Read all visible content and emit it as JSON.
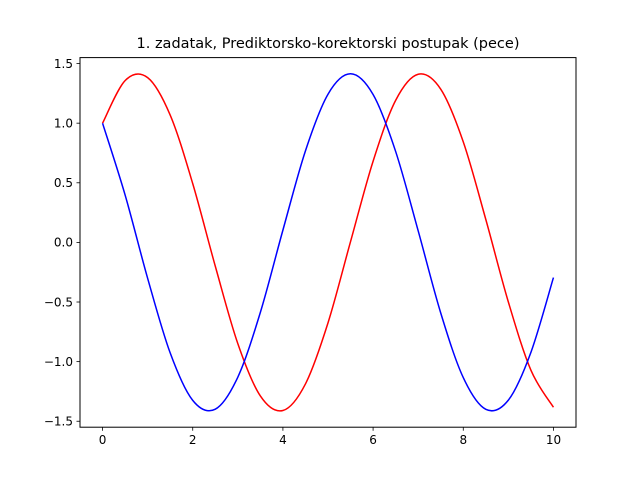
{
  "chart_data": {
    "type": "line",
    "title": "1. zadatak, Prediktorsko-korektorski postupak (pece)",
    "xlabel": "",
    "ylabel": "",
    "xlim": [
      -0.5,
      10.5
    ],
    "ylim": [
      -1.55,
      1.55
    ],
    "grid": false,
    "x_ticks": [
      0,
      2,
      4,
      6,
      8,
      10
    ],
    "x_tick_labels": [
      "0",
      "2",
      "4",
      "6",
      "8",
      "10"
    ],
    "y_ticks": [
      -1.5,
      -1.0,
      -0.5,
      0.0,
      0.5,
      1.0,
      1.5
    ],
    "y_tick_labels": [
      "−1.5",
      "−1.0",
      "−0.5",
      "0.0",
      "0.5",
      "1.0",
      "1.5"
    ],
    "x": [
      0,
      0.5,
      1,
      1.5,
      2,
      2.5,
      3,
      3.5,
      4,
      4.5,
      5,
      5.5,
      6,
      6.5,
      7,
      7.5,
      8,
      8.5,
      9,
      9.5,
      10
    ],
    "series": [
      {
        "color": "#ff0000",
        "values": [
          1.0,
          1.357,
          1.382,
          1.068,
          0.493,
          -0.199,
          -0.849,
          -1.288,
          -1.41,
          -1.187,
          -0.675,
          0.007,
          0.681,
          1.191,
          1.41,
          1.285,
          0.843,
          0.192,
          -0.5,
          -1.072,
          -1.383
        ]
      },
      {
        "color": "#0000ff",
        "values": [
          1.0,
          0.398,
          -0.301,
          -0.927,
          -1.325,
          -1.399,
          -1.13,
          -0.587,
          0.103,
          0.768,
          1.243,
          1.414,
          1.24,
          0.763,
          0.097,
          -0.592,
          -1.134,
          -1.4,
          -1.323,
          -0.922,
          -0.295
        ]
      }
    ]
  }
}
